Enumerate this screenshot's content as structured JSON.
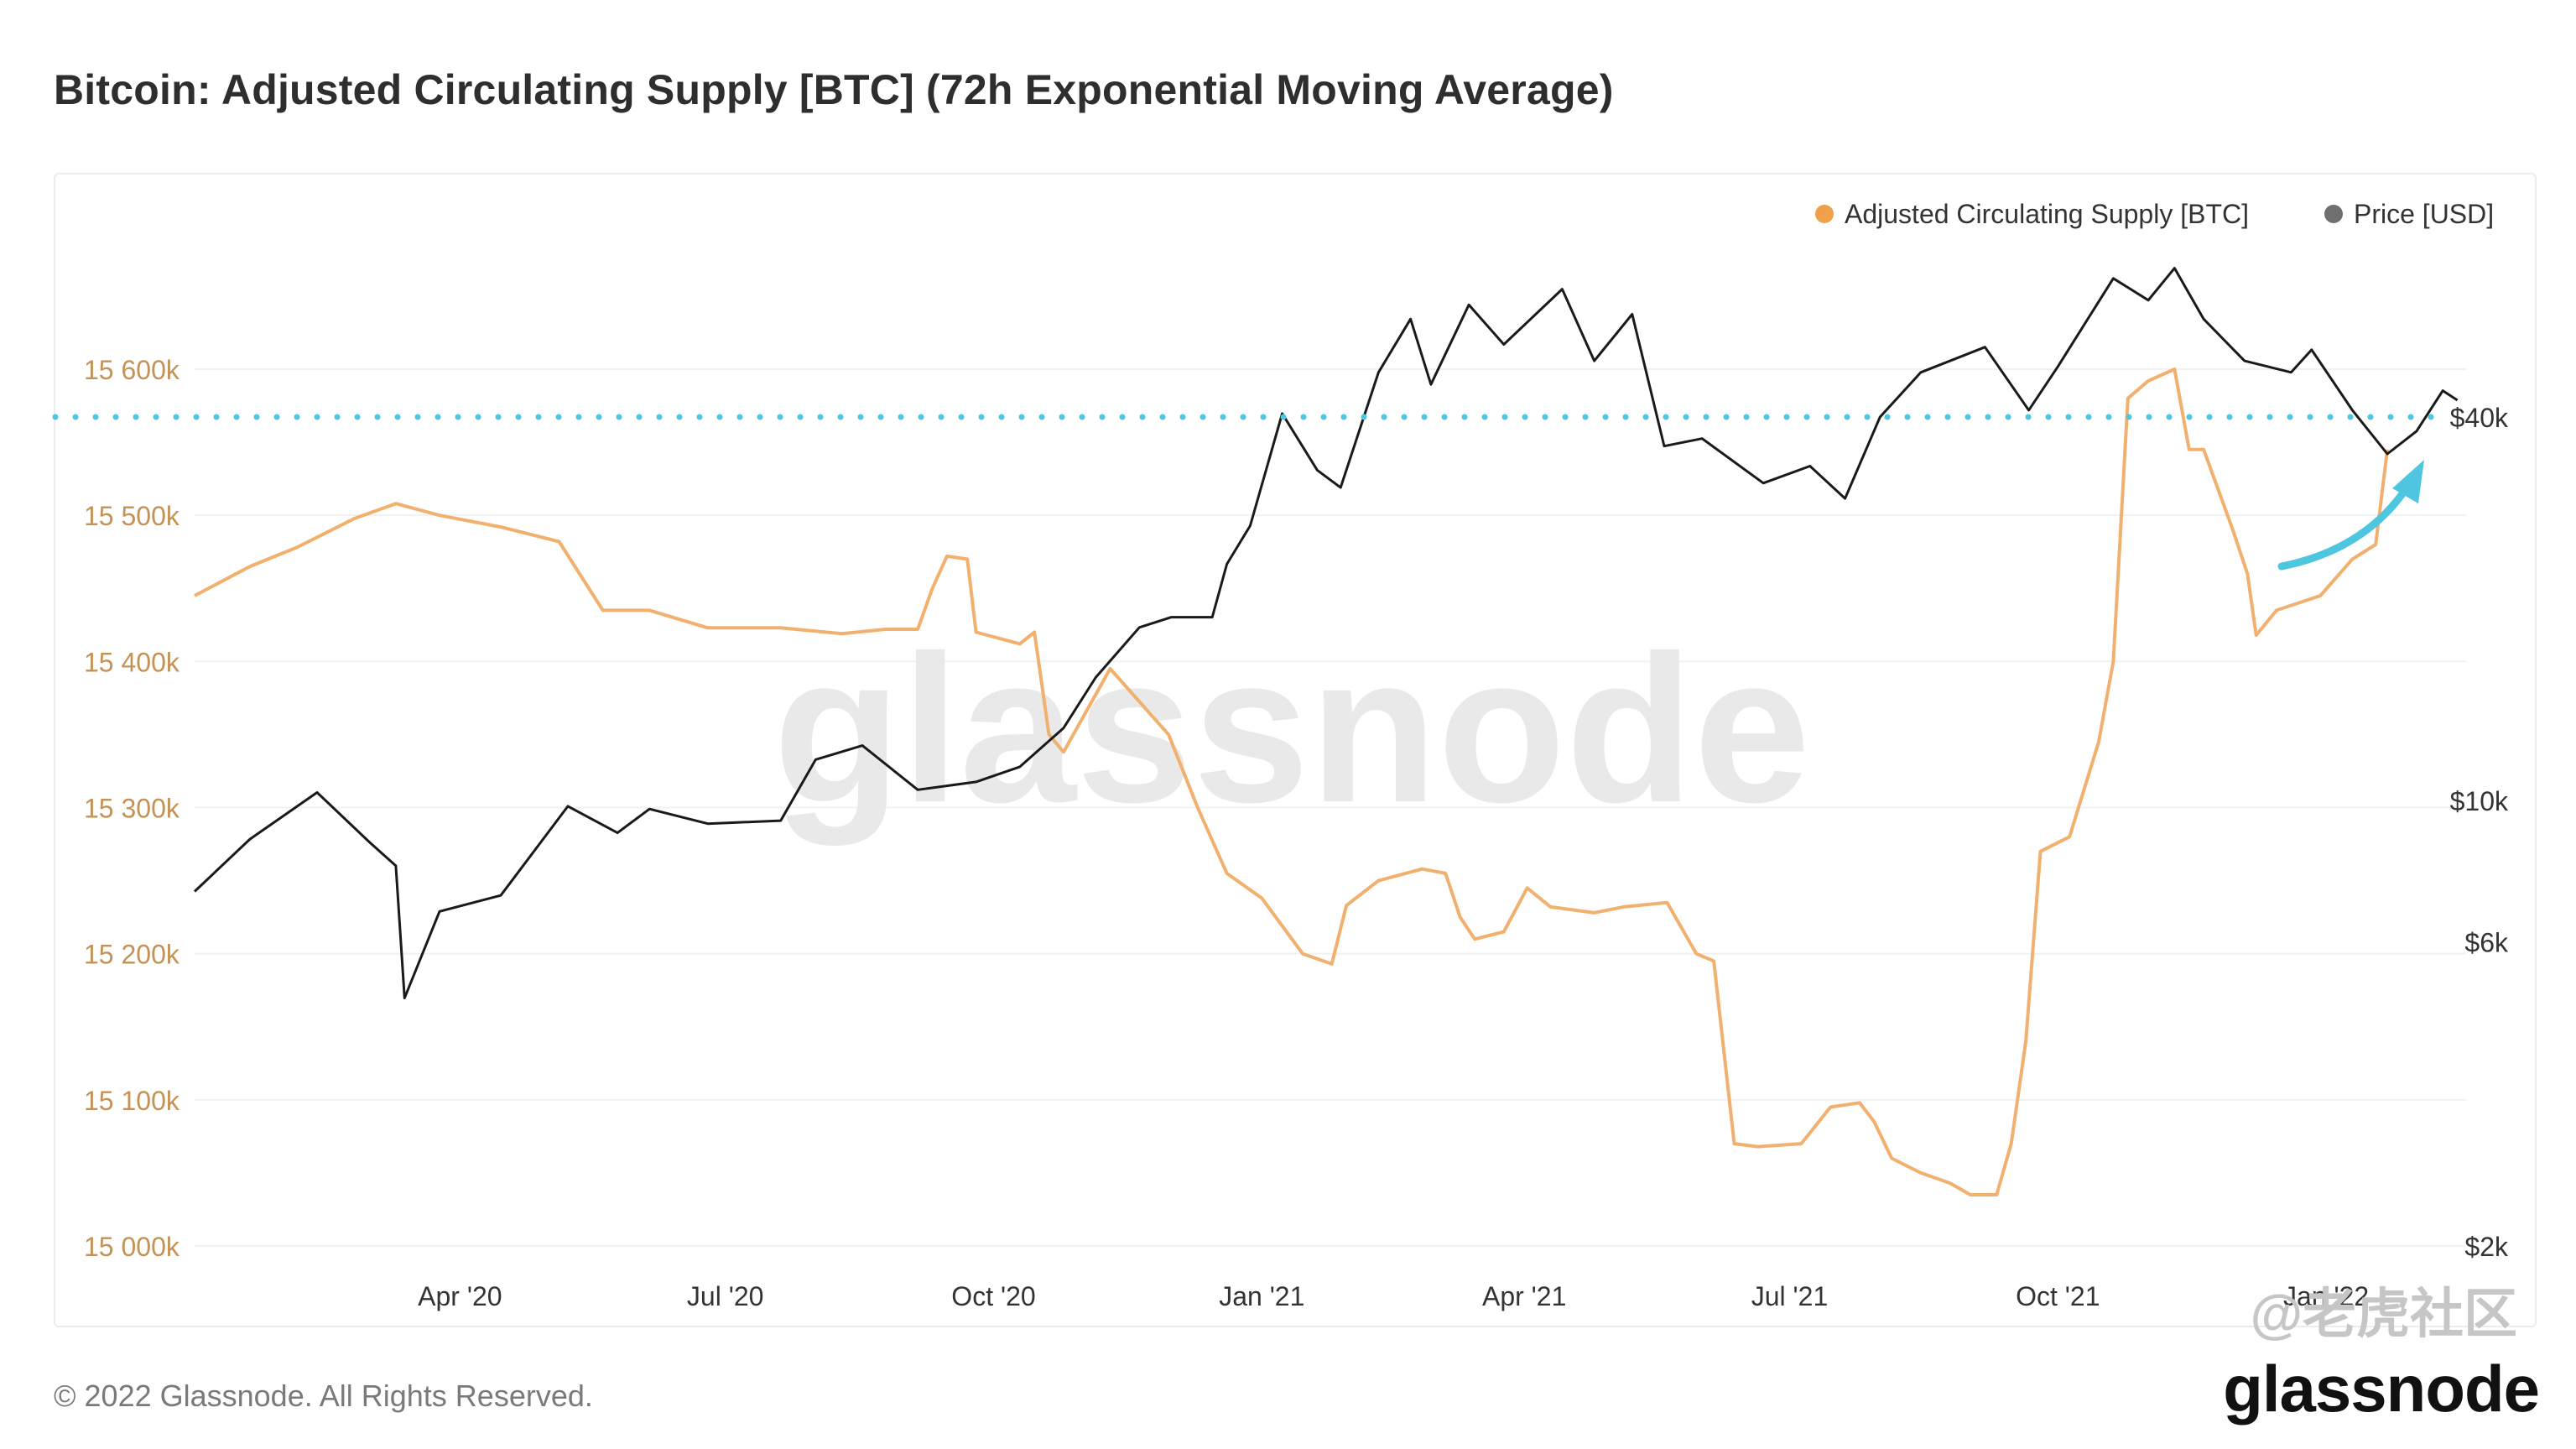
{
  "title": "Bitcoin: Adjusted Circulating Supply [BTC] (72h Exponential Moving Average)",
  "footer": "© 2022 Glassnode. All Rights Reserved.",
  "brand": "glassnode",
  "watermark": "glassnode",
  "watermark_tag": "@老虎社区",
  "colors": {
    "supply": "#f2b06f",
    "price": "#1a1a1a",
    "reference": "#4ec6e0",
    "arrow": "#4ec6e0"
  },
  "chart_data": {
    "type": "line",
    "title": "Bitcoin: Adjusted Circulating Supply [BTC] (72h Exponential Moving Average)",
    "legend": {
      "placement": "top-right",
      "entries": [
        "Adjusted Circulating Supply [BTC]",
        "Price [USD]"
      ]
    },
    "grid": true,
    "x_ticks": [
      "Apr '20",
      "Jul '20",
      "Oct '20",
      "Jan '21",
      "Apr '21",
      "Jul '21",
      "Oct '21",
      "Jan '22"
    ],
    "y_left": {
      "ticks": [
        "15 000k",
        "15 100k",
        "15 200k",
        "15 300k",
        "15 400k",
        "15 500k",
        "15 600k"
      ],
      "range": [
        15000000,
        15600000
      ]
    },
    "y_right": {
      "scale": "log",
      "ticks": [
        "$2k",
        "$6k",
        "$10k",
        "$40k"
      ]
    },
    "reference_line": {
      "value_usd": 40000
    },
    "series": [
      {
        "name": "Adjusted Circulating Supply [BTC]",
        "axis": "left",
        "points": [
          [
            "2020-01-01",
            15445000
          ],
          [
            "2020-01-20",
            15465000
          ],
          [
            "2020-02-05",
            15478000
          ],
          [
            "2020-02-25",
            15498000
          ],
          [
            "2020-03-10",
            15508000
          ],
          [
            "2020-03-25",
            15500000
          ],
          [
            "2020-04-15",
            15492000
          ],
          [
            "2020-05-05",
            15482000
          ],
          [
            "2020-05-20",
            15435000
          ],
          [
            "2020-06-05",
            15435000
          ],
          [
            "2020-06-25",
            15423000
          ],
          [
            "2020-07-20",
            15423000
          ],
          [
            "2020-08-10",
            15419000
          ],
          [
            "2020-08-25",
            15422000
          ],
          [
            "2020-09-05",
            15422000
          ],
          [
            "2020-09-10",
            15450000
          ],
          [
            "2020-09-15",
            15472000
          ],
          [
            "2020-09-22",
            15470000
          ],
          [
            "2020-09-25",
            15420000
          ],
          [
            "2020-10-10",
            15412000
          ],
          [
            "2020-10-15",
            15420000
          ],
          [
            "2020-10-20",
            15350000
          ],
          [
            "2020-10-25",
            15338000
          ],
          [
            "2020-11-10",
            15395000
          ],
          [
            "2020-11-30",
            15350000
          ],
          [
            "2020-12-10",
            15300000
          ],
          [
            "2020-12-20",
            15255000
          ],
          [
            "2021-01-01",
            15238000
          ],
          [
            "2021-01-15",
            15200000
          ],
          [
            "2021-01-25",
            15193000
          ],
          [
            "2021-01-30",
            15233000
          ],
          [
            "2021-02-10",
            15250000
          ],
          [
            "2021-02-25",
            15258000
          ],
          [
            "2021-03-05",
            15255000
          ],
          [
            "2021-03-10",
            15225000
          ],
          [
            "2021-03-15",
            15210000
          ],
          [
            "2021-03-25",
            15215000
          ],
          [
            "2021-04-02",
            15245000
          ],
          [
            "2021-04-10",
            15232000
          ],
          [
            "2021-04-25",
            15228000
          ],
          [
            "2021-05-05",
            15232000
          ],
          [
            "2021-05-20",
            15235000
          ],
          [
            "2021-05-30",
            15200000
          ],
          [
            "2021-06-05",
            15195000
          ],
          [
            "2021-06-12",
            15070000
          ],
          [
            "2021-06-20",
            15068000
          ],
          [
            "2021-07-05",
            15070000
          ],
          [
            "2021-07-15",
            15095000
          ],
          [
            "2021-07-25",
            15098000
          ],
          [
            "2021-07-30",
            15085000
          ],
          [
            "2021-08-05",
            15060000
          ],
          [
            "2021-08-15",
            15050000
          ],
          [
            "2021-08-25",
            15043000
          ],
          [
            "2021-09-01",
            15035000
          ],
          [
            "2021-09-10",
            15035000
          ],
          [
            "2021-09-15",
            15070000
          ],
          [
            "2021-09-20",
            15140000
          ],
          [
            "2021-09-25",
            15270000
          ],
          [
            "2021-10-05",
            15280000
          ],
          [
            "2021-10-15",
            15345000
          ],
          [
            "2021-10-20",
            15400000
          ],
          [
            "2021-10-25",
            15580000
          ],
          [
            "2021-11-01",
            15592000
          ],
          [
            "2021-11-10",
            15600000
          ],
          [
            "2021-11-15",
            15545000
          ],
          [
            "2021-11-20",
            15545000
          ],
          [
            "2021-11-30",
            15490000
          ],
          [
            "2021-12-05",
            15460000
          ],
          [
            "2021-12-08",
            15418000
          ],
          [
            "2021-12-15",
            15435000
          ],
          [
            "2021-12-30",
            15445000
          ],
          [
            "2022-01-10",
            15470000
          ],
          [
            "2022-01-18",
            15480000
          ],
          [
            "2022-01-22",
            15545000
          ]
        ]
      },
      {
        "name": "Price [USD]",
        "axis": "right",
        "points": [
          [
            "2020-01-01",
            7200
          ],
          [
            "2020-01-20",
            8700
          ],
          [
            "2020-02-12",
            10300
          ],
          [
            "2020-03-01",
            8600
          ],
          [
            "2020-03-10",
            7900
          ],
          [
            "2020-03-13",
            4900
          ],
          [
            "2020-03-25",
            6700
          ],
          [
            "2020-04-15",
            7100
          ],
          [
            "2020-05-08",
            9800
          ],
          [
            "2020-05-25",
            8900
          ],
          [
            "2020-06-05",
            9700
          ],
          [
            "2020-06-25",
            9200
          ],
          [
            "2020-07-20",
            9300
          ],
          [
            "2020-08-01",
            11600
          ],
          [
            "2020-08-17",
            12200
          ],
          [
            "2020-09-05",
            10400
          ],
          [
            "2020-09-25",
            10700
          ],
          [
            "2020-10-10",
            11300
          ],
          [
            "2020-10-25",
            13000
          ],
          [
            "2020-11-05",
            15600
          ],
          [
            "2020-11-20",
            18700
          ],
          [
            "2020-12-01",
            19400
          ],
          [
            "2020-12-15",
            19400
          ],
          [
            "2020-12-20",
            23500
          ],
          [
            "2020-12-28",
            27000
          ],
          [
            "2021-01-08",
            40500
          ],
          [
            "2021-01-20",
            33000
          ],
          [
            "2021-01-28",
            31000
          ],
          [
            "2021-02-10",
            47000
          ],
          [
            "2021-02-21",
            57000
          ],
          [
            "2021-02-28",
            45000
          ],
          [
            "2021-03-13",
            60000
          ],
          [
            "2021-03-25",
            52000
          ],
          [
            "2021-04-14",
            63500
          ],
          [
            "2021-04-25",
            49000
          ],
          [
            "2021-05-08",
            58000
          ],
          [
            "2021-05-19",
            36000
          ],
          [
            "2021-06-01",
            37000
          ],
          [
            "2021-06-22",
            31500
          ],
          [
            "2021-07-08",
            33500
          ],
          [
            "2021-07-20",
            29800
          ],
          [
            "2021-08-01",
            40000
          ],
          [
            "2021-08-15",
            47000
          ],
          [
            "2021-09-06",
            51500
          ],
          [
            "2021-09-21",
            41000
          ],
          [
            "2021-10-01",
            48000
          ],
          [
            "2021-10-20",
            66000
          ],
          [
            "2021-11-01",
            61000
          ],
          [
            "2021-11-10",
            68500
          ],
          [
            "2021-11-20",
            57000
          ],
          [
            "2021-12-04",
            49000
          ],
          [
            "2021-12-20",
            47000
          ],
          [
            "2021-12-27",
            51000
          ],
          [
            "2022-01-10",
            41000
          ],
          [
            "2022-01-22",
            35000
          ],
          [
            "2022-02-01",
            38000
          ],
          [
            "2022-02-10",
            44000
          ],
          [
            "2022-02-15",
            42500
          ]
        ]
      }
    ]
  }
}
